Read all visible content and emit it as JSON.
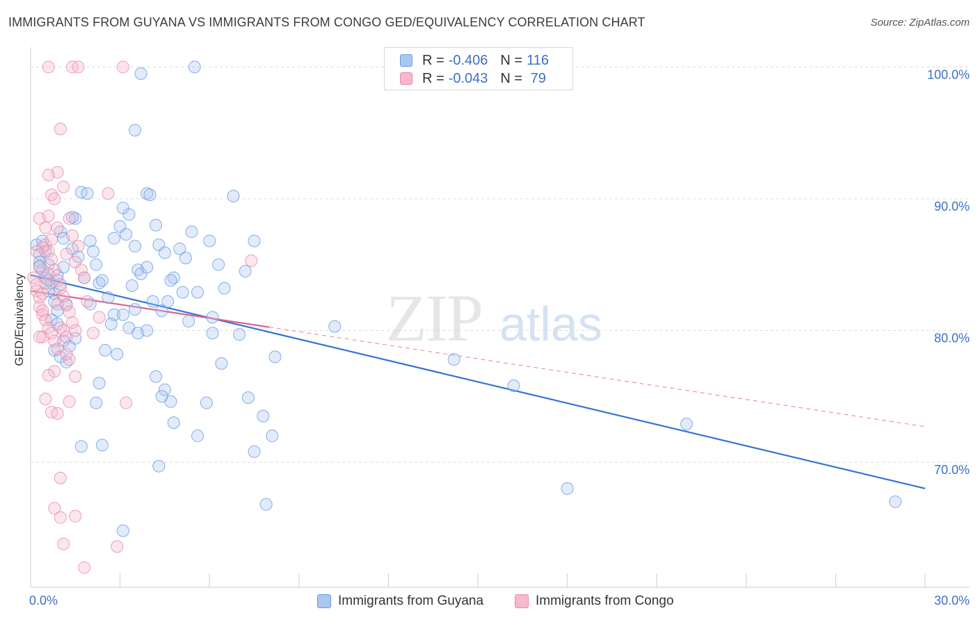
{
  "title": "IMMIGRANTS FROM GUYANA VS IMMIGRANTS FROM CONGO GED/EQUIVALENCY CORRELATION CHART",
  "source": "Source: ZipAtlas.com",
  "watermark": {
    "zip": "ZIP",
    "atlas": "atlas"
  },
  "legend": {
    "rows": [
      {
        "r_label": "R = ",
        "r_value": "-0.406",
        "n_label": "N = ",
        "n_value": "116",
        "color": "#a9c7f0",
        "stroke": "#6a9be0"
      },
      {
        "r_label": "R = ",
        "r_value": "-0.043",
        "n_label": "N = ",
        "n_value": " 79",
        "color": "#f7b8cb",
        "stroke": "#e58aa8"
      }
    ]
  },
  "chart_data": {
    "type": "scatter",
    "ylabel": "GED/Equivalency",
    "xlim": [
      0,
      30
    ],
    "ylim": [
      60.5,
      101.5
    ],
    "y_ticks": [
      {
        "value": 70,
        "label": "70.0%"
      },
      {
        "value": 80,
        "label": "80.0%"
      },
      {
        "value": 90,
        "label": "90.0%"
      },
      {
        "value": 100,
        "label": "100.0%"
      }
    ],
    "x_tick_labels": {
      "min": "0.0%",
      "max": "30.0%"
    },
    "grid": "horizontal dashed",
    "colors": {
      "guyana": "#6a9be0",
      "congo": "#e58aa8",
      "guyana_line": "#3474d4",
      "congo_line": "#e0608d"
    },
    "series": [
      {
        "name": "Immigrants from Guyana",
        "trend": {
          "x0": 0,
          "y0": 84.2,
          "x1": 30,
          "y1": 68.0,
          "solid_to": 30
        },
        "points": [
          [
            0.2,
            86.5
          ],
          [
            0.3,
            85.8
          ],
          [
            0.3,
            85.2
          ],
          [
            0.4,
            84.6
          ],
          [
            0.5,
            84.0
          ],
          [
            0.6,
            83.8
          ],
          [
            0.7,
            83.6
          ],
          [
            0.8,
            82.8
          ],
          [
            0.8,
            82.2
          ],
          [
            0.9,
            81.5
          ],
          [
            0.5,
            86.0
          ],
          [
            0.4,
            86.8
          ],
          [
            0.6,
            85.0
          ],
          [
            1.0,
            87.5
          ],
          [
            1.1,
            87.0
          ],
          [
            1.0,
            83.5
          ],
          [
            1.2,
            82.0
          ],
          [
            0.7,
            80.8
          ],
          [
            0.9,
            80.5
          ],
          [
            1.1,
            79.2
          ],
          [
            0.8,
            78.5
          ],
          [
            1.0,
            78.0
          ],
          [
            1.2,
            77.6
          ],
          [
            1.3,
            78.8
          ],
          [
            1.7,
            90.5
          ],
          [
            1.9,
            90.4
          ],
          [
            1.5,
            88.5
          ],
          [
            1.4,
            86.2
          ],
          [
            1.6,
            85.6
          ],
          [
            1.8,
            84.0
          ],
          [
            2.0,
            86.8
          ],
          [
            2.1,
            86.0
          ],
          [
            2.2,
            85.0
          ],
          [
            2.3,
            83.6
          ],
          [
            2.4,
            83.8
          ],
          [
            2.6,
            82.5
          ],
          [
            2.8,
            81.2
          ],
          [
            3.1,
            89.3
          ],
          [
            3.3,
            88.8
          ],
          [
            3.0,
            87.9
          ],
          [
            3.2,
            87.3
          ],
          [
            3.5,
            86.4
          ],
          [
            3.6,
            84.6
          ],
          [
            3.7,
            84.3
          ],
          [
            3.9,
            84.8
          ],
          [
            3.5,
            81.6
          ],
          [
            3.1,
            81.2
          ],
          [
            3.3,
            80.2
          ],
          [
            3.6,
            79.8
          ],
          [
            3.9,
            80.0
          ],
          [
            2.5,
            78.5
          ],
          [
            2.9,
            78.2
          ],
          [
            2.3,
            76.0
          ],
          [
            2.2,
            74.5
          ],
          [
            1.7,
            71.2
          ],
          [
            2.4,
            71.3
          ],
          [
            3.1,
            64.8
          ],
          [
            3.5,
            95.2
          ],
          [
            3.7,
            99.5
          ],
          [
            5.5,
            100.0
          ],
          [
            3.9,
            90.4
          ],
          [
            4.0,
            90.3
          ],
          [
            4.2,
            88.0
          ],
          [
            4.3,
            86.5
          ],
          [
            4.5,
            85.9
          ],
          [
            4.8,
            84.0
          ],
          [
            4.7,
            83.8
          ],
          [
            5.0,
            86.2
          ],
          [
            5.2,
            85.5
          ],
          [
            5.4,
            87.5
          ],
          [
            5.6,
            82.9
          ],
          [
            5.1,
            82.9
          ],
          [
            4.6,
            82.2
          ],
          [
            4.1,
            82.2
          ],
          [
            4.4,
            81.5
          ],
          [
            6.0,
            86.8
          ],
          [
            6.1,
            81.0
          ],
          [
            6.1,
            79.8
          ],
          [
            6.5,
            83.2
          ],
          [
            6.4,
            77.5
          ],
          [
            6.8,
            90.2
          ],
          [
            7.2,
            84.5
          ],
          [
            7.5,
            86.8
          ],
          [
            7.0,
            79.7
          ],
          [
            8.2,
            78.0
          ],
          [
            7.3,
            74.9
          ],
          [
            7.8,
            73.5
          ],
          [
            8.1,
            72.0
          ],
          [
            7.5,
            70.8
          ],
          [
            7.9,
            66.8
          ],
          [
            4.2,
            76.5
          ],
          [
            4.5,
            75.5
          ],
          [
            4.7,
            74.6
          ],
          [
            4.8,
            73.0
          ],
          [
            5.6,
            72.0
          ],
          [
            5.9,
            74.5
          ],
          [
            4.3,
            69.7
          ],
          [
            4.4,
            75.0
          ],
          [
            10.2,
            80.3
          ],
          [
            14.2,
            77.8
          ],
          [
            16.2,
            75.8
          ],
          [
            18.0,
            68.0
          ],
          [
            22.0,
            72.9
          ],
          [
            29.0,
            67.0
          ],
          [
            1.4,
            88.6
          ],
          [
            2.8,
            87.0
          ],
          [
            3.4,
            83.4
          ],
          [
            5.3,
            80.7
          ],
          [
            6.3,
            85.0
          ],
          [
            0.9,
            84.2
          ],
          [
            1.5,
            79.4
          ],
          [
            2.0,
            82.0
          ],
          [
            2.7,
            80.5
          ],
          [
            0.6,
            83.0
          ],
          [
            1.1,
            84.8
          ],
          [
            0.3,
            84.9
          ]
        ]
      },
      {
        "name": "Immigrants from Congo",
        "trend": {
          "x0": 0,
          "y0": 83.0,
          "x1": 30,
          "y1": 72.7,
          "solid_to": 8.0
        },
        "points": [
          [
            0.1,
            84.0
          ],
          [
            0.2,
            83.5
          ],
          [
            0.2,
            83.0
          ],
          [
            0.3,
            82.5
          ],
          [
            0.3,
            81.8
          ],
          [
            0.4,
            81.2
          ],
          [
            0.5,
            80.8
          ],
          [
            0.6,
            80.2
          ],
          [
            0.4,
            79.5
          ],
          [
            0.7,
            79.8
          ],
          [
            0.8,
            79.2
          ],
          [
            0.9,
            78.6
          ],
          [
            0.5,
            86.5
          ],
          [
            0.6,
            86.0
          ],
          [
            0.7,
            85.4
          ],
          [
            0.8,
            84.6
          ],
          [
            0.9,
            83.8
          ],
          [
            1.0,
            83.2
          ],
          [
            1.1,
            82.6
          ],
          [
            1.2,
            81.9
          ],
          [
            1.3,
            81.4
          ],
          [
            1.4,
            80.6
          ],
          [
            1.5,
            80.0
          ],
          [
            1.0,
            80.2
          ],
          [
            1.2,
            79.5
          ],
          [
            0.3,
            88.5
          ],
          [
            0.5,
            87.8
          ],
          [
            0.6,
            88.7
          ],
          [
            0.7,
            90.3
          ],
          [
            0.8,
            90.0
          ],
          [
            0.9,
            92.0
          ],
          [
            1.0,
            95.3
          ],
          [
            0.6,
            91.8
          ],
          [
            1.1,
            90.9
          ],
          [
            1.3,
            88.5
          ],
          [
            1.4,
            87.2
          ],
          [
            1.6,
            86.4
          ],
          [
            1.5,
            85.2
          ],
          [
            1.7,
            84.6
          ],
          [
            1.8,
            84.0
          ],
          [
            0.4,
            86.3
          ],
          [
            0.7,
            86.9
          ],
          [
            0.9,
            87.8
          ],
          [
            0.6,
            84.3
          ],
          [
            0.3,
            84.8
          ],
          [
            0.2,
            86.0
          ],
          [
            1.2,
            85.8
          ],
          [
            0.8,
            76.9
          ],
          [
            0.6,
            76.6
          ],
          [
            0.5,
            74.8
          ],
          [
            0.7,
            73.8
          ],
          [
            1.3,
            74.6
          ],
          [
            1.5,
            76.5
          ],
          [
            0.9,
            73.7
          ],
          [
            1.0,
            68.8
          ],
          [
            0.8,
            66.5
          ],
          [
            1.0,
            65.8
          ],
          [
            1.1,
            63.8
          ],
          [
            1.5,
            65.9
          ],
          [
            1.8,
            62.0
          ],
          [
            2.9,
            63.6
          ],
          [
            0.6,
            100.0
          ],
          [
            1.4,
            100.0
          ],
          [
            1.6,
            100.0
          ],
          [
            3.1,
            100.0
          ],
          [
            2.6,
            90.4
          ],
          [
            3.2,
            74.5
          ],
          [
            7.4,
            85.3
          ],
          [
            2.1,
            79.8
          ],
          [
            1.9,
            82.2
          ],
          [
            2.3,
            81.0
          ],
          [
            0.4,
            82.8
          ],
          [
            0.5,
            83.6
          ],
          [
            0.9,
            82.0
          ],
          [
            1.3,
            77.8
          ],
          [
            1.1,
            80.0
          ],
          [
            0.3,
            79.5
          ],
          [
            0.4,
            81.5
          ],
          [
            1.2,
            78.2
          ]
        ]
      }
    ]
  }
}
